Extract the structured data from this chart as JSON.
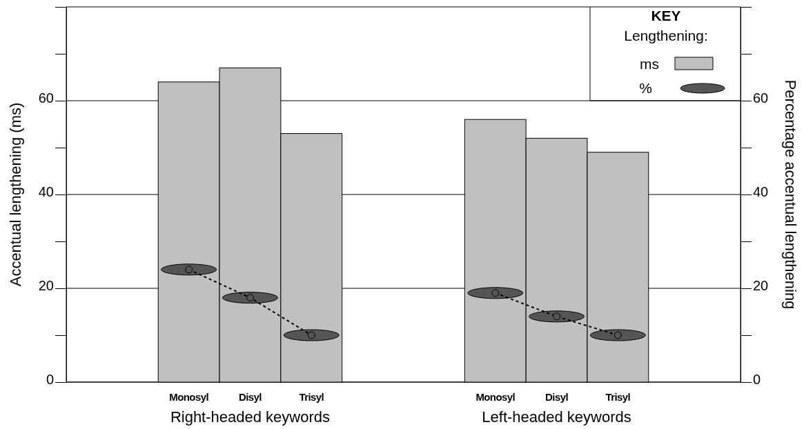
{
  "chart_data": {
    "type": "bar",
    "categories": [
      null,
      "Monosyl",
      "Disyl",
      "Trisyl",
      null,
      null,
      "Monosyl",
      "Disyl",
      "Trisyl",
      null
    ],
    "series": [
      {
        "name": "ms",
        "type": "bar",
        "color": "#c0c0c0",
        "values": [
          null,
          64,
          67,
          53,
          null,
          null,
          56,
          52,
          49,
          null
        ]
      },
      {
        "name": "%",
        "type": "scatter",
        "axis": "y2",
        "color": "#555555",
        "marker": "circle",
        "values": [
          null,
          24,
          18,
          10,
          null,
          null,
          19,
          14,
          10,
          null
        ]
      },
      {
        "type": "line",
        "axis": "y2",
        "color": "#000000",
        "marker": "none",
        "line_style": "dotted",
        "values": [
          null,
          24,
          18,
          10,
          null,
          null,
          19,
          14,
          10,
          null
        ]
      }
    ],
    "ylabel": "Accentual lengthening (ms)",
    "y2label": "Percentage accentual lengthening",
    "ylim": [
      0,
      80
    ],
    "yticks": [
      0,
      {
        "value": 10,
        "label": null
      },
      20,
      {
        "value": 30,
        "label": null
      },
      40,
      {
        "value": 50,
        "label": null
      },
      60,
      {
        "value": 70,
        "label": null
      }
    ],
    "y2lim": [
      0,
      80
    ],
    "y2ticks": [
      0,
      {
        "value": 10,
        "label": null
      },
      20,
      {
        "value": 30,
        "label": null
      },
      40,
      {
        "value": 50,
        "label": null
      },
      60,
      {
        "value": 70,
        "label": null
      }
    ],
    "grid": "y",
    "legend": "top right",
    "legend_title": "KEY\nLengthening:",
    "annotations": [
      "Right-headed keywords",
      "Left-headed keywords"
    ]
  }
}
